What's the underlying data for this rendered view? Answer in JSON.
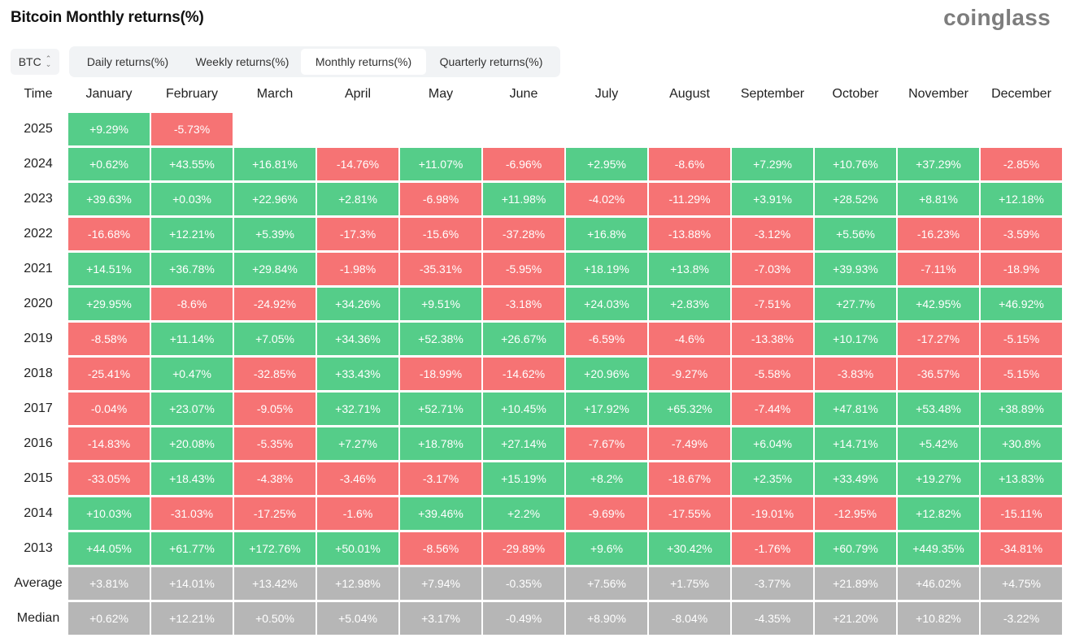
{
  "title": "Bitcoin Monthly returns(%)",
  "brand": "coinglass",
  "asset_select": {
    "value": "BTC",
    "icon": "chevron-updown-icon"
  },
  "tabs": [
    {
      "label": "Daily returns(%)",
      "active": false
    },
    {
      "label": "Weekly returns(%)",
      "active": false
    },
    {
      "label": "Monthly returns(%)",
      "active": true
    },
    {
      "label": "Quarterly returns(%)",
      "active": false
    }
  ],
  "colors": {
    "positive": "#55cd89",
    "negative": "#f67374",
    "stat": "#b6b6b6"
  },
  "table": {
    "time_header": "Time",
    "months": [
      "January",
      "February",
      "March",
      "April",
      "May",
      "June",
      "July",
      "August",
      "September",
      "October",
      "November",
      "December"
    ],
    "rows": [
      {
        "year": "2025",
        "values": [
          "+9.29%",
          "-5.73%"
        ]
      },
      {
        "year": "2024",
        "values": [
          "+0.62%",
          "+43.55%",
          "+16.81%",
          "-14.76%",
          "+11.07%",
          "-6.96%",
          "+2.95%",
          "-8.6%",
          "+7.29%",
          "+10.76%",
          "+37.29%",
          "-2.85%"
        ]
      },
      {
        "year": "2023",
        "values": [
          "+39.63%",
          "+0.03%",
          "+22.96%",
          "+2.81%",
          "-6.98%",
          "+11.98%",
          "-4.02%",
          "-11.29%",
          "+3.91%",
          "+28.52%",
          "+8.81%",
          "+12.18%"
        ]
      },
      {
        "year": "2022",
        "values": [
          "-16.68%",
          "+12.21%",
          "+5.39%",
          "-17.3%",
          "-15.6%",
          "-37.28%",
          "+16.8%",
          "-13.88%",
          "-3.12%",
          "+5.56%",
          "-16.23%",
          "-3.59%"
        ]
      },
      {
        "year": "2021",
        "values": [
          "+14.51%",
          "+36.78%",
          "+29.84%",
          "-1.98%",
          "-35.31%",
          "-5.95%",
          "+18.19%",
          "+13.8%",
          "-7.03%",
          "+39.93%",
          "-7.11%",
          "-18.9%"
        ]
      },
      {
        "year": "2020",
        "values": [
          "+29.95%",
          "-8.6%",
          "-24.92%",
          "+34.26%",
          "+9.51%",
          "-3.18%",
          "+24.03%",
          "+2.83%",
          "-7.51%",
          "+27.7%",
          "+42.95%",
          "+46.92%"
        ]
      },
      {
        "year": "2019",
        "values": [
          "-8.58%",
          "+11.14%",
          "+7.05%",
          "+34.36%",
          "+52.38%",
          "+26.67%",
          "-6.59%",
          "-4.6%",
          "-13.38%",
          "+10.17%",
          "-17.27%",
          "-5.15%"
        ]
      },
      {
        "year": "2018",
        "values": [
          "-25.41%",
          "+0.47%",
          "-32.85%",
          "+33.43%",
          "-18.99%",
          "-14.62%",
          "+20.96%",
          "-9.27%",
          "-5.58%",
          "-3.83%",
          "-36.57%",
          "-5.15%"
        ]
      },
      {
        "year": "2017",
        "values": [
          "-0.04%",
          "+23.07%",
          "-9.05%",
          "+32.71%",
          "+52.71%",
          "+10.45%",
          "+17.92%",
          "+65.32%",
          "-7.44%",
          "+47.81%",
          "+53.48%",
          "+38.89%"
        ]
      },
      {
        "year": "2016",
        "values": [
          "-14.83%",
          "+20.08%",
          "-5.35%",
          "+7.27%",
          "+18.78%",
          "+27.14%",
          "-7.67%",
          "-7.49%",
          "+6.04%",
          "+14.71%",
          "+5.42%",
          "+30.8%"
        ]
      },
      {
        "year": "2015",
        "values": [
          "-33.05%",
          "+18.43%",
          "-4.38%",
          "-3.46%",
          "-3.17%",
          "+15.19%",
          "+8.2%",
          "-18.67%",
          "+2.35%",
          "+33.49%",
          "+19.27%",
          "+13.83%"
        ]
      },
      {
        "year": "2014",
        "values": [
          "+10.03%",
          "-31.03%",
          "-17.25%",
          "-1.6%",
          "+39.46%",
          "+2.2%",
          "-9.69%",
          "-17.55%",
          "-19.01%",
          "-12.95%",
          "+12.82%",
          "-15.11%"
        ]
      },
      {
        "year": "2013",
        "values": [
          "+44.05%",
          "+61.77%",
          "+172.76%",
          "+50.01%",
          "-8.56%",
          "-29.89%",
          "+9.6%",
          "+30.42%",
          "-1.76%",
          "+60.79%",
          "+449.35%",
          "-34.81%"
        ]
      }
    ],
    "stats": [
      {
        "label": "Average",
        "values": [
          "+3.81%",
          "+14.01%",
          "+13.42%",
          "+12.98%",
          "+7.94%",
          "-0.35%",
          "+7.56%",
          "+1.75%",
          "-3.77%",
          "+21.89%",
          "+46.02%",
          "+4.75%"
        ]
      },
      {
        "label": "Median",
        "values": [
          "+0.62%",
          "+12.21%",
          "+0.50%",
          "+5.04%",
          "+3.17%",
          "-0.49%",
          "+8.90%",
          "-8.04%",
          "-4.35%",
          "+21.20%",
          "+10.82%",
          "-3.22%"
        ]
      }
    ]
  }
}
